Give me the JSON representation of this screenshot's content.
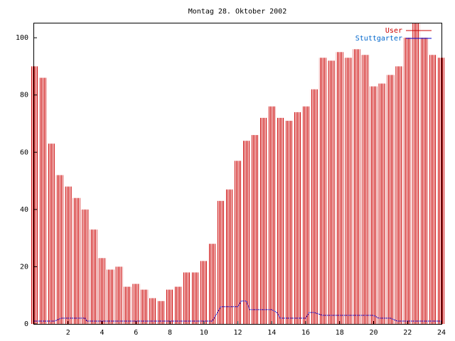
{
  "chart_data": {
    "type": "bar",
    "title": "Montag 28. Oktober 2002",
    "xlabel": "",
    "ylabel": "",
    "xlim": [
      0,
      24
    ],
    "ylim": [
      0,
      105
    ],
    "x_ticks": [
      2,
      4,
      6,
      8,
      10,
      12,
      14,
      16,
      18,
      20,
      22,
      24
    ],
    "x_tick_labels": [
      "2",
      "4",
      "6",
      "8",
      "10",
      "12",
      "14",
      "16",
      "18",
      "20",
      "22",
      "24"
    ],
    "y_ticks": [
      0,
      20,
      40,
      60,
      80,
      100
    ],
    "y_tick_labels": [
      "0",
      "20",
      "40",
      "60",
      "80",
      "100"
    ],
    "grid": false,
    "legend_position": "top-right",
    "series": [
      {
        "name": "User",
        "color": "#cc0000",
        "style": "impulse",
        "x": [
          0,
          0.5,
          1,
          1.5,
          2,
          2.5,
          3,
          3.5,
          4,
          4.5,
          5,
          5.5,
          6,
          6.5,
          7,
          7.5,
          8,
          8.5,
          9,
          9.5,
          10,
          10.5,
          11,
          11.5,
          12,
          12.5,
          13,
          13.5,
          14,
          14.5,
          15,
          15.5,
          16,
          16.5,
          17,
          17.5,
          18,
          18.5,
          19,
          19.5,
          20,
          20.5,
          21,
          21.5,
          22,
          22.5,
          23,
          23.5,
          24
        ],
        "values": [
          90,
          86,
          63,
          52,
          48,
          44,
          40,
          33,
          23,
          19,
          20,
          13,
          14,
          12,
          9,
          8,
          12,
          13,
          18,
          18,
          22,
          28,
          43,
          47,
          57,
          64,
          66,
          72,
          76,
          72,
          71,
          74,
          76,
          82,
          93,
          92,
          95,
          93,
          96,
          94,
          83,
          84,
          87,
          90,
          100,
          105,
          100,
          94,
          93
        ]
      },
      {
        "name": "Stuttgarter",
        "color": "#0000cc",
        "style": "line",
        "x": [
          0,
          1.2,
          1.6,
          3.0,
          3.1,
          10.5,
          10.8,
          11.0,
          11.3,
          12.0,
          12.2,
          12.5,
          12.7,
          13.0,
          13.5,
          14.0,
          14.3,
          14.5,
          15.0,
          16.0,
          16.2,
          16.5,
          17.0,
          18.0,
          19.0,
          20.0,
          20.3,
          21.0,
          21.4,
          24
        ],
        "values": [
          1,
          1,
          2,
          2,
          1,
          1,
          4,
          6,
          6,
          6,
          8,
          8,
          5,
          5,
          5,
          5,
          4,
          2,
          2,
          2,
          4,
          4,
          3,
          3,
          3,
          3,
          2,
          2,
          1,
          1
        ]
      }
    ]
  }
}
